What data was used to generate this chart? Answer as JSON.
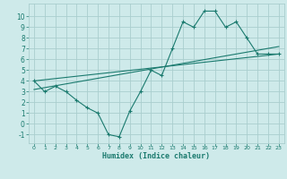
{
  "line1_x": [
    0,
    1,
    2,
    3,
    4,
    5,
    6,
    7,
    8,
    9,
    10,
    11,
    12,
    13,
    14,
    15,
    16,
    17,
    18,
    19,
    20,
    21,
    22,
    23
  ],
  "line1_y": [
    4.0,
    3.0,
    3.5,
    3.0,
    2.2,
    1.5,
    1.0,
    -1.0,
    -1.2,
    1.2,
    3.0,
    5.0,
    4.5,
    7.0,
    9.5,
    9.0,
    10.5,
    10.5,
    9.0,
    9.5,
    8.0,
    6.5,
    6.5,
    6.5
  ],
  "line2_x": [
    0,
    23
  ],
  "line2_y": [
    4.0,
    6.5
  ],
  "line3_x": [
    0,
    23
  ],
  "line3_y": [
    3.2,
    7.2
  ],
  "line_color": "#1a7a6e",
  "bg_color": "#ceeaea",
  "grid_color": "#aacece",
  "xlabel": "Humidex (Indice chaleur)",
  "xticks": [
    0,
    1,
    2,
    3,
    4,
    5,
    6,
    7,
    8,
    9,
    10,
    11,
    12,
    13,
    14,
    15,
    16,
    17,
    18,
    19,
    20,
    21,
    22,
    23
  ],
  "yticks": [
    -1,
    0,
    1,
    2,
    3,
    4,
    5,
    6,
    7,
    8,
    9,
    10
  ],
  "xlim": [
    -0.5,
    23.5
  ],
  "ylim": [
    -1.8,
    11.2
  ]
}
